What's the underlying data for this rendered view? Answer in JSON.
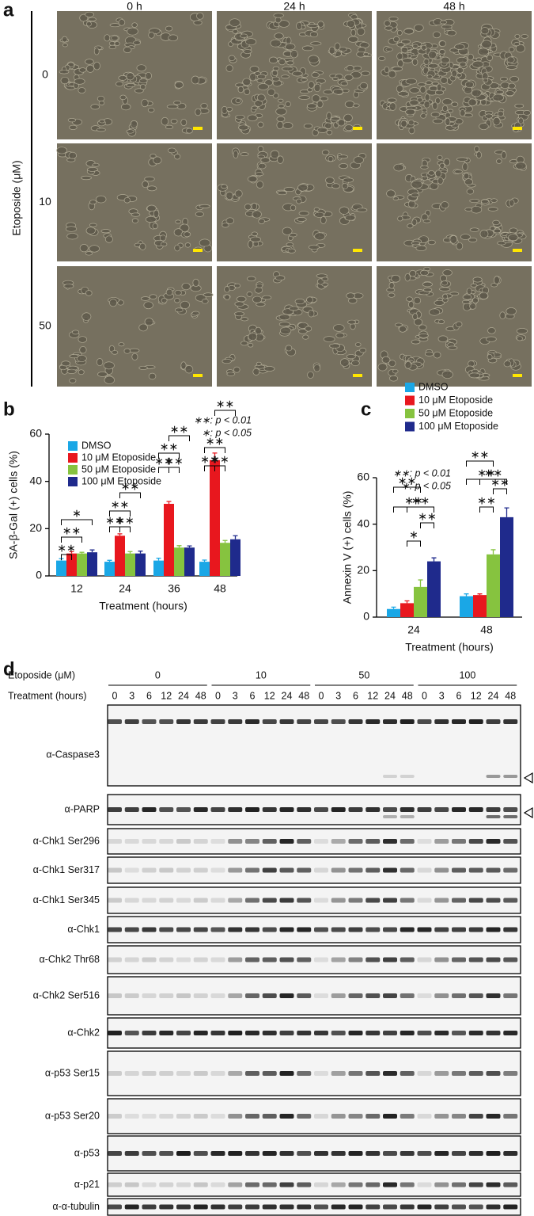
{
  "panel_a": {
    "label": "a",
    "columns": [
      "0 h",
      "24 h",
      "48 h"
    ],
    "rows": [
      "0",
      "10",
      "50"
    ],
    "y_label": "Etoposide (μM)"
  },
  "chart_data": [
    {
      "type": "bar",
      "panel_label": "b",
      "categories": [
        "12",
        "24",
        "36",
        "48"
      ],
      "x_label": "Treatment (hours)",
      "y_label": "SA-β-Gal (+) cells (%)",
      "series": [
        {
          "name": "DMSO",
          "color": "#1aa7e6",
          "values": [
            6.5,
            6,
            6.5,
            6
          ],
          "errors": [
            0.8,
            0.6,
            1,
            0.7
          ]
        },
        {
          "name": "10 μM Etoposide",
          "color": "#e8171e",
          "values": [
            9.5,
            17,
            30.5,
            49
          ],
          "errors": [
            0.8,
            0.8,
            1,
            3
          ]
        },
        {
          "name": "50 μM Etoposide",
          "color": "#86c33f",
          "values": [
            9.5,
            9.5,
            12,
            14
          ],
          "errors": [
            0.5,
            0.8,
            0.8,
            1
          ]
        },
        {
          "name": "100 μM Etoposide",
          "color": "#1f2a8c",
          "values": [
            10,
            9.5,
            12,
            15.5
          ],
          "errors": [
            1,
            1,
            0.7,
            1.5
          ]
        }
      ],
      "ylim": [
        0,
        60
      ],
      "yticks": [
        0,
        20,
        40,
        60
      ],
      "notes": [
        "∗∗: p < 0.01",
        "∗: p < 0.05"
      ],
      "annotations": [
        "∗∗",
        "∗∗",
        "∗",
        "∗∗",
        "∗∗",
        "∗∗",
        "∗∗",
        "∗∗",
        "∗∗",
        "∗∗",
        "∗∗",
        "∗∗",
        "∗∗",
        "∗∗",
        "∗∗"
      ]
    },
    {
      "type": "bar",
      "panel_label": "c",
      "categories": [
        "24",
        "48"
      ],
      "x_label": "Treatment (hours)",
      "y_label": "Annexin V (+) cells (%)",
      "series": [
        {
          "name": "DMSO",
          "color": "#1aa7e6",
          "values": [
            3.5,
            9
          ],
          "errors": [
            0.8,
            1
          ]
        },
        {
          "name": "10 μM Etoposide",
          "color": "#e8171e",
          "values": [
            6,
            9.5
          ],
          "errors": [
            1,
            0.5
          ]
        },
        {
          "name": "50 μM Etoposide",
          "color": "#86c33f",
          "values": [
            13,
            27
          ],
          "errors": [
            3,
            2
          ]
        },
        {
          "name": "100 μM Etoposide",
          "color": "#1f2a8c",
          "values": [
            24,
            43
          ],
          "errors": [
            1.5,
            4
          ]
        }
      ],
      "ylim": [
        0,
        60
      ],
      "yticks": [
        0,
        20,
        40,
        60
      ],
      "notes": [
        "∗∗: p < 0.01",
        "∗: p < 0.05"
      ],
      "annotations": [
        "∗",
        "∗∗",
        "∗∗",
        "∗∗",
        "∗∗",
        "∗∗",
        "∗∗",
        "∗∗",
        "∗∗",
        "∗∗"
      ]
    }
  ],
  "panel_d": {
    "label": "d",
    "etoposide_label": "Etoposide (μM)",
    "doses": [
      "0",
      "10",
      "50",
      "100"
    ],
    "treatment_label": "Treatment (hours)",
    "times": [
      "0",
      "3",
      "6",
      "12",
      "24",
      "48"
    ],
    "blots": [
      "α-Caspase3",
      "α-PARP",
      "α-Chk1 Ser296",
      "α-Chk1 Ser317",
      "α-Chk1 Ser345",
      "α-Chk1",
      "α-Chk2 Thr68",
      "α-Chk2 Ser516",
      "α-Chk2",
      "α-p53 Ser15",
      "α-p53 Ser20",
      "α-p53",
      "α-p21",
      "α-α-tubulin"
    ]
  }
}
